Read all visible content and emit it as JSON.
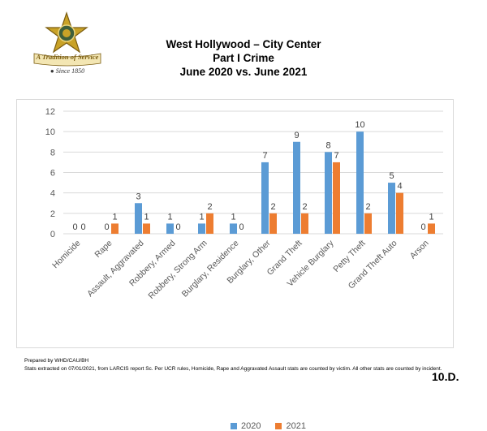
{
  "badge": {
    "motto": "A Tradition of Service",
    "since": "Since 1850"
  },
  "titles": {
    "line1": "West Hollywood – City Center",
    "line2": "Part I Crime",
    "line3": "June 2020 vs. June 2021"
  },
  "chart_data": {
    "type": "bar",
    "categories": [
      "Homicide",
      "Rape",
      "Assault, Aggravated",
      "Robbery, Armed",
      "Robbery, Strong Arm",
      "Burglary, Residence",
      "Burglary, Other",
      "Grand Theft",
      "Vehicle Burglary",
      "Petty Theft",
      "Grand Theft Auto",
      "Arson"
    ],
    "series": [
      {
        "name": "2020",
        "values": [
          0,
          0,
          3,
          1,
          1,
          1,
          7,
          9,
          8,
          10,
          5,
          0
        ],
        "color": "#5b9bd5"
      },
      {
        "name": "2021",
        "values": [
          0,
          1,
          1,
          0,
          2,
          0,
          2,
          2,
          7,
          2,
          4,
          1
        ],
        "color": "#ed7d31"
      }
    ],
    "ylim": [
      0,
      12
    ],
    "yticks": [
      0,
      2,
      4,
      6,
      8,
      10,
      12
    ],
    "grid": true,
    "legend": "bottom"
  },
  "footer": {
    "prepared": "Prepared by WHD/CAU/BH",
    "note": "Stats extracted on 07/01/2021, from LARCIS report Sc. Per UCR rules, Homicide, Rape and Aggravated Assault stats are counted by victim. All other stats are counted by incident.",
    "page_code": "10.D."
  }
}
